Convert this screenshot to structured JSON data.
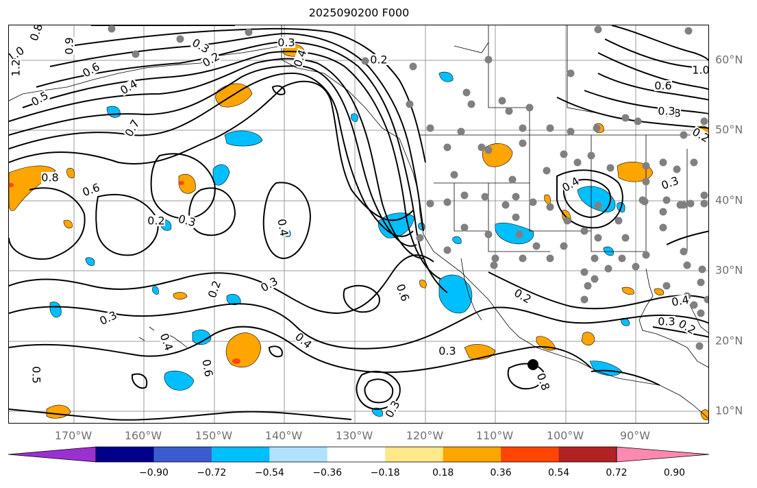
{
  "title": "2025090200 F000",
  "longitude_labels": [
    "170°W",
    "160°W",
    "150°W",
    "140°W",
    "130°W",
    "120°W",
    "110°W",
    "100°W",
    "90°W"
  ],
  "latitude_labels": [
    "60°N",
    "50°N",
    "40°N",
    "30°N",
    "20°N",
    "10°N"
  ],
  "colorbar": {
    "tick_labels": [
      "−0.90",
      "−0.72",
      "−0.54",
      "−0.36",
      "−0.18",
      "0.18",
      "0.36",
      "0.54",
      "0.72",
      "0.90"
    ],
    "colors": [
      "#9b30d0",
      "#00008b",
      "#3b5cd0",
      "#00bfff",
      "#b0e2ff",
      "#ffffff",
      "#ffe888",
      "#ffa500",
      "#ff4500",
      "#b22222",
      "#ff88b0"
    ]
  },
  "contour_labels": [
    "0.8",
    "1.0",
    "1.2",
    "0.9",
    "0.7",
    "0.5",
    "0.4",
    "0.6",
    "0.3",
    "0.2",
    "0.8",
    "0.6",
    "0.4",
    "0.3",
    "0.2",
    "1.0",
    "0.6",
    "0.8",
    "0.3",
    "0.2",
    "0.3",
    "0.4",
    "0.2",
    "0.4",
    "0.3",
    "0.6",
    "0.3",
    "0.2",
    "0.3",
    "0.4",
    "0.3",
    "0.4",
    "0.6",
    "0.5",
    "0.8",
    "0.3",
    "0.2",
    "0.3",
    "0.4",
    "0.2"
  ],
  "colors": {
    "contour": "#000000",
    "positive_fill": "#ffa500",
    "negative_fill": "#00bfff",
    "station_dot": "#808080",
    "grid": "#808080",
    "axis_label": "#707070"
  }
}
